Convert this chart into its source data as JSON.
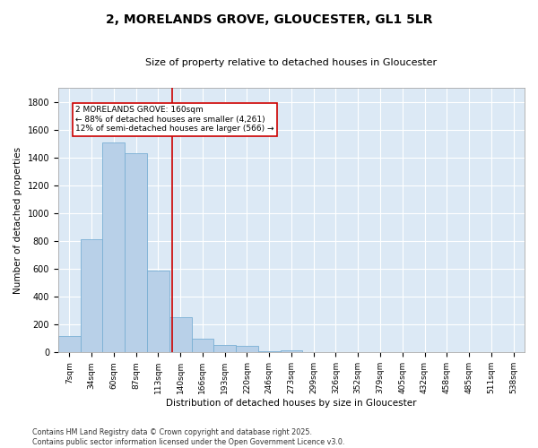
{
  "title": "2, MORELANDS GROVE, GLOUCESTER, GL1 5LR",
  "subtitle": "Size of property relative to detached houses in Gloucester",
  "xlabel": "Distribution of detached houses by size in Gloucester",
  "ylabel": "Number of detached properties",
  "footer": "Contains HM Land Registry data © Crown copyright and database right 2025.\nContains public sector information licensed under the Open Government Licence v3.0.",
  "categories": [
    "7sqm",
    "34sqm",
    "60sqm",
    "87sqm",
    "113sqm",
    "140sqm",
    "166sqm",
    "193sqm",
    "220sqm",
    "246sqm",
    "273sqm",
    "299sqm",
    "326sqm",
    "352sqm",
    "379sqm",
    "405sqm",
    "432sqm",
    "458sqm",
    "485sqm",
    "511sqm",
    "538sqm"
  ],
  "values": [
    120,
    810,
    1510,
    1430,
    590,
    250,
    100,
    55,
    50,
    10,
    12,
    0,
    0,
    0,
    0,
    0,
    0,
    0,
    0,
    0,
    0
  ],
  "bar_color": "#b8d0e8",
  "bar_edge_color": "#7aafd4",
  "bg_color": "#dce9f5",
  "grid_color": "#ffffff",
  "vline_x": 4.62,
  "vline_color": "#cc0000",
  "annotation_text": "2 MORELANDS GROVE: 160sqm\n← 88% of detached houses are smaller (4,261)\n12% of semi-detached houses are larger (566) →",
  "annotation_box_color": "#ffffff",
  "annotation_box_edge": "#cc0000",
  "ylim": [
    0,
    1900
  ],
  "yticks": [
    0,
    200,
    400,
    600,
    800,
    1000,
    1200,
    1400,
    1600,
    1800
  ]
}
